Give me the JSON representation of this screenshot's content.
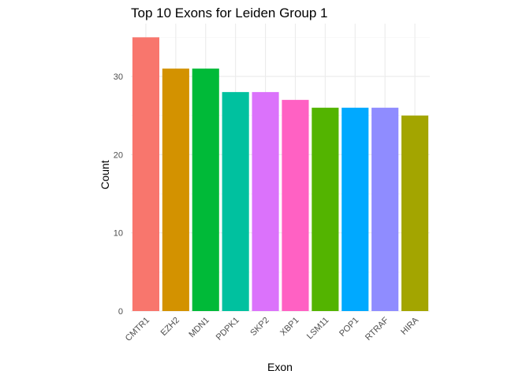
{
  "chart_data": {
    "type": "bar",
    "title": "Top 10 Exons for Leiden Group 1",
    "xlabel": "Exon",
    "ylabel": "Count",
    "categories": [
      "CMTR1",
      "EZH2",
      "MDN1",
      "PDPK1",
      "SKP2",
      "XBP1",
      "LSM11",
      "POP1",
      "RTRAF",
      "HIRA"
    ],
    "values": [
      35,
      31,
      31,
      28,
      28,
      27,
      26,
      26,
      26,
      25
    ],
    "colors": [
      "#F8766D",
      "#D39200",
      "#00BA38",
      "#00C19F",
      "#DB72FB",
      "#FF61C3",
      "#53B400",
      "#00A9FF",
      "#8F8CFF",
      "#A3A500"
    ],
    "ylim": [
      0,
      36.75
    ],
    "yticks": [
      0,
      10,
      20,
      30
    ],
    "grid": true,
    "legend": "none"
  }
}
